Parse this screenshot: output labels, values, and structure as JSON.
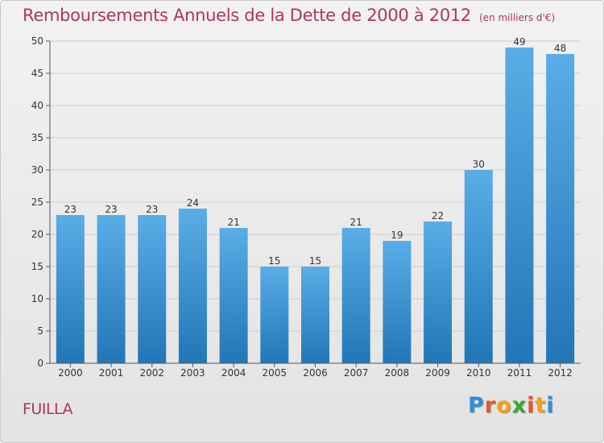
{
  "title": "Remboursements Annuels de la Dette de 2000 à 2012",
  "subtitle": "(en milliers d'€)",
  "commune": "FUILLA",
  "logo": {
    "text": "Proxiti",
    "letter_colors": [
      "#2f8fd8",
      "#e8562a",
      "#f2a21c",
      "#37a935",
      "#e8562a",
      "#f2a21c",
      "#2f8fd8"
    ]
  },
  "colors": {
    "bar_light": "#5aade6",
    "bar_dark": "#2276b6",
    "axis": "#555555",
    "grid": "#cccccc",
    "title": "#b0345f"
  },
  "chart_data": {
    "type": "bar",
    "categories": [
      "2000",
      "2001",
      "2002",
      "2003",
      "2004",
      "2005",
      "2006",
      "2007",
      "2008",
      "2009",
      "2010",
      "2011",
      "2012"
    ],
    "values": [
      23,
      23,
      23,
      24,
      21,
      15,
      15,
      21,
      19,
      22,
      30,
      49,
      48
    ],
    "title": "Remboursements Annuels de la Dette de 2000 à 2012",
    "subtitle": "(en milliers d'€)",
    "xlabel": "",
    "ylabel": "",
    "ylim": [
      0,
      50
    ],
    "yticks": [
      0,
      5,
      10,
      15,
      20,
      25,
      30,
      35,
      40,
      45,
      50
    ],
    "grid": true,
    "data_labels": true
  }
}
